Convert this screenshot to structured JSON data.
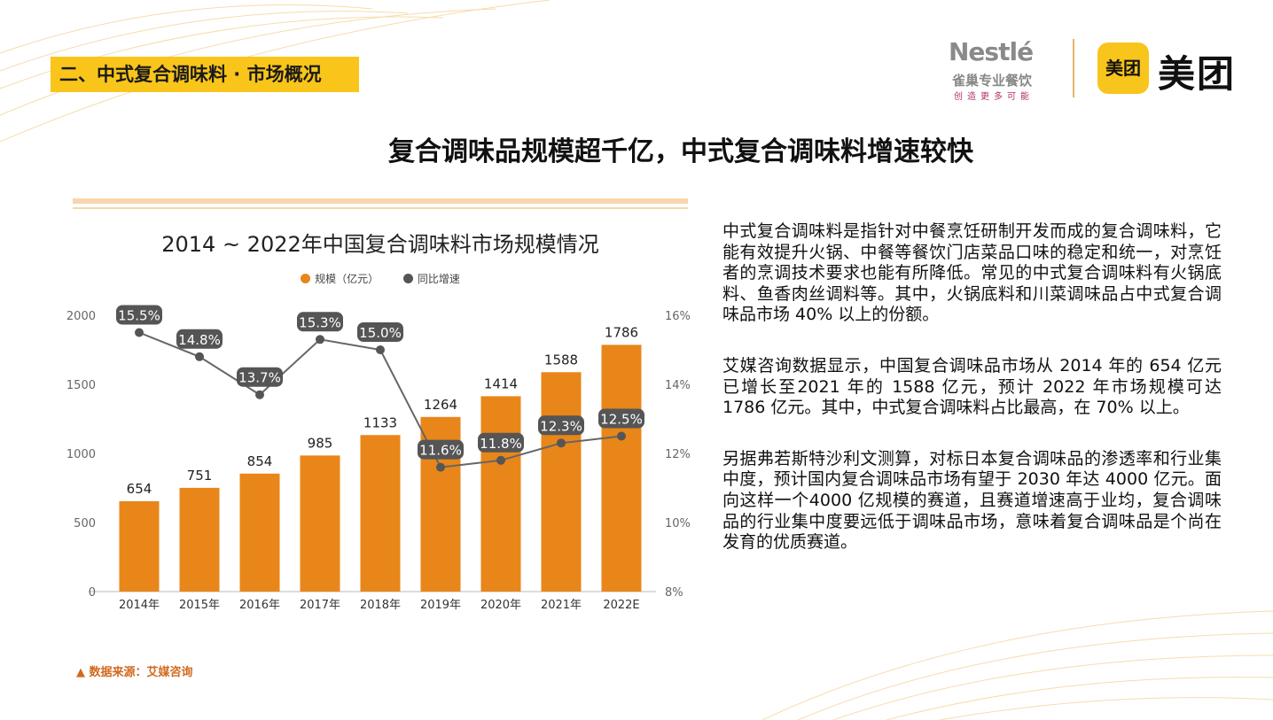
{
  "header": {
    "section_tag": "二、中式复合调味料 · 市场概况",
    "title": "复合调味品规模超千亿，中式复合调味料增速较快"
  },
  "logos": {
    "nestle": "Nestlé",
    "nestle_sub": "雀巢专业餐饮",
    "nestle_slogan": "创造更多可能",
    "meituan_icon": "美团",
    "meituan_text": "美团"
  },
  "colors": {
    "accent": "#f9c51a",
    "bar": "#e8861a",
    "line": "#666666"
  },
  "chart_data": {
    "type": "bar+line",
    "title": "2014 ~ 2022年中国复合调味料市场规模情况",
    "categories": [
      "2014年",
      "2015年",
      "2016年",
      "2017年",
      "2018年",
      "2019年",
      "2020年",
      "2021年",
      "2022E"
    ],
    "series": [
      {
        "name": "规模（亿元）",
        "type": "bar",
        "axis": "left",
        "values": [
          654,
          751,
          854,
          985,
          1133,
          1264,
          1414,
          1588,
          1786
        ]
      },
      {
        "name": "同比增速",
        "type": "line",
        "axis": "right",
        "values": [
          15.5,
          14.8,
          13.7,
          15.3,
          15.0,
          11.6,
          11.8,
          12.3,
          12.5
        ],
        "labels": [
          "15.5%",
          "14.8%",
          "13.7%",
          "15.3%",
          "15.0%",
          "11.6%",
          "11.8%",
          "12.3%",
          "12.5%"
        ]
      }
    ],
    "ylim_left": [
      0,
      2000
    ],
    "yticks_left": [
      "0",
      "500",
      "1000",
      "1500",
      "2000"
    ],
    "ylim_right": [
      8,
      16
    ],
    "yticks_right": [
      "8%",
      "10%",
      "12%",
      "14%",
      "16%"
    ],
    "legend_position": "top"
  },
  "source": "▲ 数据来源：艾媒咨询",
  "paragraphs": [
    "中式复合调味料是指针对中餐烹饪研制开发而成的复合调味料，它能有效提升火锅、中餐等餐饮门店菜品口味的稳定和统一，对烹饪者的烹调技术要求也能有所降低。常见的中式复合调味料有火锅底料、鱼香肉丝调料等。其中，火锅底料和川菜调味品占中式复合调味品市场 40% 以上的份额。",
    "艾媒咨询数据显示，中国复合调味品市场从 2014 年的 654 亿元已增长至2021 年的 1588 亿元，预计 2022 年市场规模可达 1786 亿元。其中，中式复合调味料占比最高，在 70% 以上。",
    "另据弗若斯特沙利文测算，对标日本复合调味品的渗透率和行业集中度，预计国内复合调味品市场有望于 2030 年达 4000 亿元。面向这样一个4000 亿规模的赛道，且赛道增速高于业均，复合调味品的行业集中度要远低于调味品市场，意味着复合调味品是个尚在发育的优质赛道。"
  ]
}
